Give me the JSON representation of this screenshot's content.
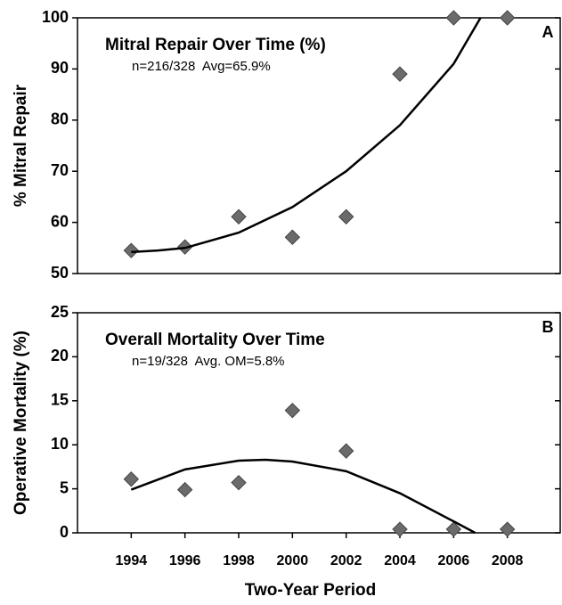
{
  "chart_data": [
    {
      "type": "scatter",
      "title": "Mitral Repair Over Time (%)",
      "subtitle": "n=216/328  Avg=65.9%",
      "panel_label": "A",
      "y_label": "% Mitral Repair",
      "xlim": [
        1992,
        2010
      ],
      "ylim": [
        50,
        100
      ],
      "yticks": [
        50,
        60,
        70,
        80,
        90,
        100
      ],
      "series": [
        {
          "kind": "points",
          "color": "#6b6b6b",
          "x": [
            1994,
            1996,
            1998,
            2000,
            2002,
            2004,
            2006,
            2008
          ],
          "values": [
            54.5,
            55.2,
            61.1,
            57.1,
            61.1,
            89.0,
            100,
            100
          ]
        },
        {
          "kind": "trend",
          "color": "#000000",
          "x": [
            1994,
            1995,
            1996,
            1998,
            2000,
            2002,
            2004,
            2006,
            2007
          ],
          "values": [
            54.2,
            54.5,
            55,
            58,
            63,
            70,
            79,
            91,
            100
          ]
        }
      ]
    },
    {
      "type": "scatter",
      "title": "Overall Mortality Over Time",
      "subtitle": "n=19/328  Avg. OM=5.8%",
      "panel_label": "B",
      "y_label": "Operative Mortality (%)",
      "x_label": "Two-Year Period",
      "xlim": [
        1992,
        2010
      ],
      "ylim": [
        0,
        25
      ],
      "yticks": [
        0,
        5,
        10,
        15,
        20,
        25
      ],
      "xticks": [
        1994,
        1996,
        1998,
        2000,
        2002,
        2004,
        2006,
        2008
      ],
      "series": [
        {
          "kind": "points",
          "color": "#6b6b6b",
          "x": [
            1994,
            1996,
            1998,
            2000,
            2002,
            2004,
            2006,
            2008
          ],
          "values": [
            6.1,
            4.9,
            5.7,
            13.9,
            9.3,
            0.4,
            0.4,
            0.4
          ]
        },
        {
          "kind": "trend",
          "color": "#000000",
          "x": [
            1994,
            1996,
            1998,
            1999,
            2000,
            2002,
            2004,
            2006,
            2006.8
          ],
          "values": [
            4.9,
            7.2,
            8.2,
            8.3,
            8.1,
            7,
            4.5,
            1.3,
            0
          ]
        }
      ]
    }
  ]
}
